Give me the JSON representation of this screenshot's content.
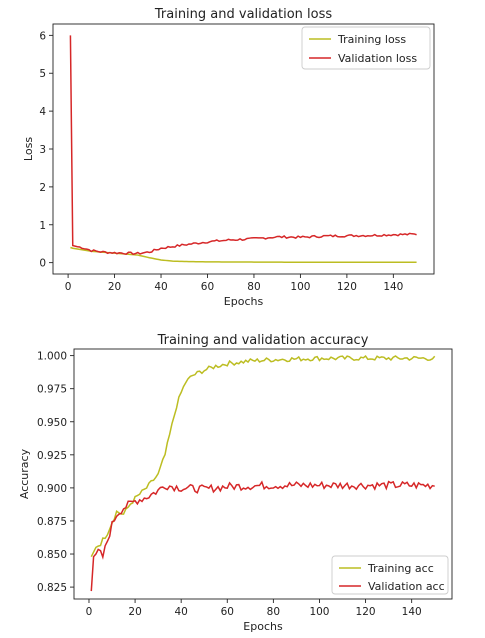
{
  "chart_data": [
    {
      "type": "line",
      "title": "Training and validation loss",
      "xlabel": "Epochs",
      "ylabel": "Loss",
      "xlim": [
        -6.5,
        157.5
      ],
      "ylim": [
        -0.3,
        6.3
      ],
      "xticks": [
        0,
        20,
        40,
        60,
        80,
        100,
        120,
        140
      ],
      "yticks": [
        0,
        1,
        2,
        3,
        4,
        5,
        6
      ],
      "legend_position": "top-right",
      "series": [
        {
          "name": "Training loss",
          "color": "#bcbd22",
          "keypoints": [
            [
              1,
              0.4
            ],
            [
              2,
              0.38
            ],
            [
              5,
              0.35
            ],
            [
              10,
              0.3
            ],
            [
              20,
              0.25
            ],
            [
              30,
              0.2
            ],
            [
              35,
              0.13
            ],
            [
              40,
              0.07
            ],
            [
              45,
              0.04
            ],
            [
              50,
              0.03
            ],
            [
              60,
              0.02
            ],
            [
              80,
              0.015
            ],
            [
              100,
              0.01
            ],
            [
              150,
              0.01
            ]
          ],
          "noise": 0.0
        },
        {
          "name": "Validation loss",
          "color": "#d62728",
          "keypoints": [
            [
              1,
              6.0
            ],
            [
              2,
              0.45
            ],
            [
              4,
              0.42
            ],
            [
              6,
              0.4
            ],
            [
              10,
              0.32
            ],
            [
              15,
              0.28
            ],
            [
              20,
              0.26
            ],
            [
              30,
              0.24
            ],
            [
              35,
              0.28
            ],
            [
              40,
              0.38
            ],
            [
              50,
              0.47
            ],
            [
              60,
              0.55
            ],
            [
              70,
              0.6
            ],
            [
              80,
              0.63
            ],
            [
              90,
              0.68
            ],
            [
              100,
              0.67
            ],
            [
              110,
              0.7
            ],
            [
              120,
              0.71
            ],
            [
              130,
              0.72
            ],
            [
              140,
              0.74
            ],
            [
              150,
              0.75
            ]
          ],
          "noise": 0.03
        }
      ]
    },
    {
      "type": "line",
      "title": "Training and validation accuracy",
      "xlabel": "Epochs",
      "ylabel": "Accuracy",
      "xlim": [
        -6.5,
        157.5
      ],
      "ylim": [
        0.816,
        1.005
      ],
      "xticks": [
        0,
        20,
        40,
        60,
        80,
        100,
        120,
        140
      ],
      "yticks": [
        "0.825",
        "0.850",
        "0.875",
        "0.900",
        "0.925",
        "0.950",
        "0.975",
        "1.000"
      ],
      "legend_position": "bottom-right",
      "series": [
        {
          "name": "Training acc",
          "color": "#bcbd22",
          "keypoints": [
            [
              1,
              0.848
            ],
            [
              3,
              0.855
            ],
            [
              5,
              0.858
            ],
            [
              8,
              0.866
            ],
            [
              10,
              0.874
            ],
            [
              12,
              0.882
            ],
            [
              15,
              0.88
            ],
            [
              18,
              0.888
            ],
            [
              20,
              0.892
            ],
            [
              25,
              0.9
            ],
            [
              28,
              0.906
            ],
            [
              30,
              0.91
            ],
            [
              33,
              0.925
            ],
            [
              35,
              0.94
            ],
            [
              38,
              0.962
            ],
            [
              40,
              0.972
            ],
            [
              42,
              0.98
            ],
            [
              45,
              0.985
            ],
            [
              50,
              0.989
            ],
            [
              55,
              0.992
            ],
            [
              60,
              0.994
            ],
            [
              70,
              0.996
            ],
            [
              80,
              0.997
            ],
            [
              100,
              0.998
            ],
            [
              120,
              0.998
            ],
            [
              150,
              0.998
            ]
          ],
          "noise": 0.0018
        },
        {
          "name": "Validation acc",
          "color": "#d62728",
          "keypoints": [
            [
              1,
              0.822
            ],
            [
              2,
              0.848
            ],
            [
              4,
              0.852
            ],
            [
              6,
              0.848
            ],
            [
              8,
              0.86
            ],
            [
              10,
              0.872
            ],
            [
              12,
              0.88
            ],
            [
              15,
              0.885
            ],
            [
              18,
              0.888
            ],
            [
              20,
              0.89
            ],
            [
              25,
              0.893
            ],
            [
              30,
              0.898
            ],
            [
              33,
              0.902
            ],
            [
              40,
              0.9
            ],
            [
              50,
              0.899
            ],
            [
              60,
              0.901
            ],
            [
              80,
              0.902
            ],
            [
              100,
              0.902
            ],
            [
              120,
              0.902
            ],
            [
              150,
              0.902
            ]
          ],
          "noise": 0.003
        }
      ]
    }
  ]
}
